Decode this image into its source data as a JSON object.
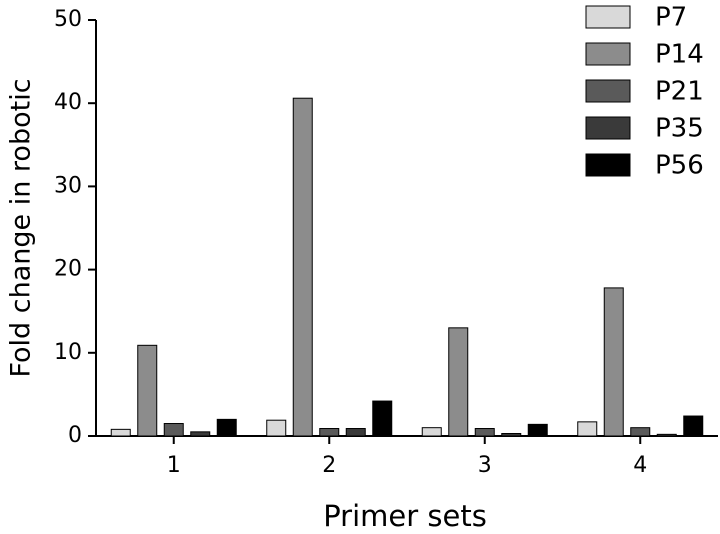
{
  "chart_data": {
    "type": "bar",
    "xlabel": "Primer sets",
    "ylabel": "Fold change in robotic",
    "categories": [
      "1",
      "2",
      "3",
      "4"
    ],
    "series": [
      {
        "name": "P7",
        "color": "#d9d9d9",
        "values": [
          0.8,
          1.9,
          1.0,
          1.7
        ]
      },
      {
        "name": "P14",
        "color": "#8c8c8c",
        "values": [
          10.9,
          40.6,
          13.0,
          17.8
        ]
      },
      {
        "name": "P21",
        "color": "#5a5a5a",
        "values": [
          1.5,
          0.9,
          0.9,
          1.0
        ]
      },
      {
        "name": "P35",
        "color": "#3a3a3a",
        "values": [
          0.5,
          0.9,
          0.3,
          0.2
        ]
      },
      {
        "name": "P56",
        "color": "#000000",
        "values": [
          2.0,
          4.2,
          1.4,
          2.4
        ]
      }
    ],
    "ylim": [
      0,
      50
    ],
    "yticks": [
      0,
      10,
      20,
      30,
      40,
      50
    ]
  }
}
